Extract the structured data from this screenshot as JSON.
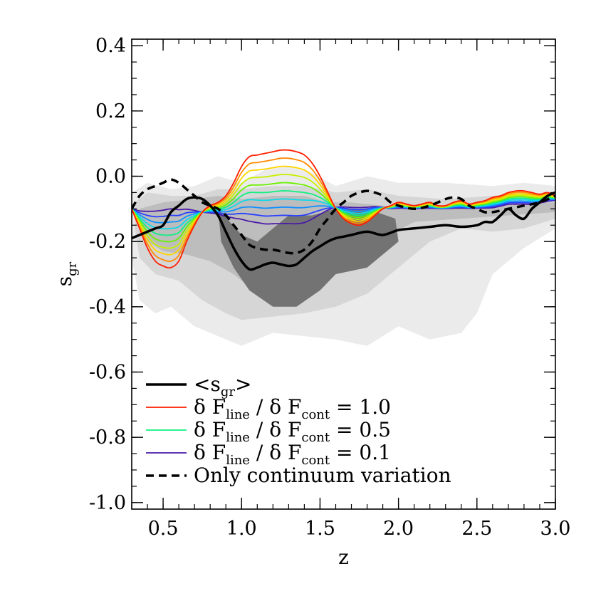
{
  "chart_data": {
    "type": "line",
    "xlabel": "z",
    "ylabel_main": "s",
    "ylabel_sub": "gr",
    "xlim": [
      0.3,
      3.0
    ],
    "ylim": [
      -1.02,
      0.42
    ],
    "xticks": [
      0.5,
      1.0,
      1.5,
      2.0,
      2.5,
      3.0
    ],
    "xtick_labels": [
      "0.5",
      "1.0",
      "1.5",
      "2.0",
      "2.5",
      "3.0"
    ],
    "yticks": [
      0.4,
      0.2,
      0.0,
      -0.2,
      -0.4,
      -0.6,
      -0.8,
      -1.0
    ],
    "ytick_labels": [
      "0.4",
      "0.2",
      "0.0",
      "-0.2",
      "-0.4",
      "-0.6",
      "-0.8",
      "-1.0"
    ],
    "x_minor_step": 0.1,
    "y_minor_step": 0.05,
    "density_contours": [
      {
        "level": "outer",
        "color": "#ebebeb",
        "points": [
          [
            0.3,
            -0.05
          ],
          [
            0.4,
            -0.02
          ],
          [
            0.55,
            -0.04
          ],
          [
            0.7,
            -0.03
          ],
          [
            0.85,
            0.0
          ],
          [
            1.0,
            -0.02
          ],
          [
            1.15,
            0.02
          ],
          [
            1.3,
            0.03
          ],
          [
            1.45,
            0.01
          ],
          [
            1.6,
            -0.03
          ],
          [
            1.8,
            0.0
          ],
          [
            2.0,
            -0.02
          ],
          [
            2.3,
            -0.02
          ],
          [
            2.6,
            -0.03
          ],
          [
            2.8,
            -0.02
          ],
          [
            3.0,
            -0.03
          ],
          [
            3.0,
            -0.16
          ],
          [
            2.8,
            -0.22
          ],
          [
            2.6,
            -0.3
          ],
          [
            2.5,
            -0.42
          ],
          [
            2.4,
            -0.48
          ],
          [
            2.2,
            -0.5
          ],
          [
            2.0,
            -0.46
          ],
          [
            1.8,
            -0.52
          ],
          [
            1.6,
            -0.5
          ],
          [
            1.4,
            -0.49
          ],
          [
            1.2,
            -0.48
          ],
          [
            1.0,
            -0.52
          ],
          [
            0.85,
            -0.49
          ],
          [
            0.7,
            -0.46
          ],
          [
            0.55,
            -0.4
          ],
          [
            0.45,
            -0.42
          ],
          [
            0.35,
            -0.38
          ],
          [
            0.3,
            -0.25
          ]
        ]
      },
      {
        "level": "middle",
        "color": "#d6d6d6",
        "points": [
          [
            0.32,
            -0.08
          ],
          [
            0.4,
            -0.05
          ],
          [
            0.55,
            -0.06
          ],
          [
            0.7,
            -0.06
          ],
          [
            0.85,
            -0.04
          ],
          [
            1.0,
            -0.04
          ],
          [
            1.2,
            -0.03
          ],
          [
            1.4,
            -0.03
          ],
          [
            1.6,
            -0.05
          ],
          [
            1.8,
            -0.04
          ],
          [
            2.0,
            -0.06
          ],
          [
            2.3,
            -0.07
          ],
          [
            2.6,
            -0.06
          ],
          [
            2.8,
            -0.05
          ],
          [
            3.0,
            -0.06
          ],
          [
            3.0,
            -0.13
          ],
          [
            2.8,
            -0.16
          ],
          [
            2.6,
            -0.17
          ],
          [
            2.4,
            -0.16
          ],
          [
            2.2,
            -0.2
          ],
          [
            2.0,
            -0.28
          ],
          [
            1.8,
            -0.36
          ],
          [
            1.6,
            -0.4
          ],
          [
            1.4,
            -0.42
          ],
          [
            1.2,
            -0.43
          ],
          [
            1.0,
            -0.44
          ],
          [
            0.9,
            -0.42
          ],
          [
            0.75,
            -0.38
          ],
          [
            0.6,
            -0.32
          ],
          [
            0.45,
            -0.3
          ],
          [
            0.35,
            -0.25
          ],
          [
            0.32,
            -0.16
          ]
        ]
      },
      {
        "level": "inner",
        "color": "#bdbdbd",
        "points": [
          [
            0.35,
            -0.1
          ],
          [
            0.5,
            -0.08
          ],
          [
            0.7,
            -0.07
          ],
          [
            0.85,
            -0.06
          ],
          [
            1.0,
            -0.07
          ],
          [
            1.2,
            -0.06
          ],
          [
            1.4,
            -0.06
          ],
          [
            1.55,
            -0.08
          ],
          [
            1.7,
            -0.08
          ],
          [
            1.9,
            -0.09
          ],
          [
            2.1,
            -0.1
          ],
          [
            2.4,
            -0.09
          ],
          [
            2.7,
            -0.08
          ],
          [
            3.0,
            -0.08
          ],
          [
            3.0,
            -0.11
          ],
          [
            2.7,
            -0.12
          ],
          [
            2.4,
            -0.13
          ],
          [
            2.1,
            -0.14
          ],
          [
            1.9,
            -0.19
          ],
          [
            1.7,
            -0.25
          ],
          [
            1.55,
            -0.32
          ],
          [
            1.4,
            -0.36
          ],
          [
            1.2,
            -0.37
          ],
          [
            1.05,
            -0.34
          ],
          [
            0.95,
            -0.3
          ],
          [
            0.8,
            -0.26
          ],
          [
            0.65,
            -0.24
          ],
          [
            0.5,
            -0.23
          ],
          [
            0.4,
            -0.2
          ],
          [
            0.35,
            -0.15
          ]
        ]
      },
      {
        "level": "core",
        "color": "#737373",
        "points": [
          [
            0.85,
            -0.1
          ],
          [
            1.0,
            -0.18
          ],
          [
            1.1,
            -0.2
          ],
          [
            1.3,
            -0.12
          ],
          [
            1.45,
            -0.12
          ],
          [
            1.6,
            -0.1
          ],
          [
            1.8,
            -0.1
          ],
          [
            1.98,
            -0.13
          ],
          [
            2.0,
            -0.2
          ],
          [
            1.8,
            -0.28
          ],
          [
            1.6,
            -0.3
          ],
          [
            1.5,
            -0.35
          ],
          [
            1.35,
            -0.4
          ],
          [
            1.2,
            -0.4
          ],
          [
            1.05,
            -0.35
          ],
          [
            0.95,
            -0.28
          ],
          [
            0.87,
            -0.2
          ]
        ]
      }
    ],
    "series": [
      {
        "name": "<s_gr>",
        "kind": "mean",
        "color": "#000000",
        "width": 3.5,
        "dash": "",
        "x": [
          0.3,
          0.35,
          0.4,
          0.45,
          0.5,
          0.55,
          0.6,
          0.65,
          0.7,
          0.75,
          0.8,
          0.85,
          0.9,
          0.95,
          1.0,
          1.05,
          1.1,
          1.15,
          1.2,
          1.25,
          1.3,
          1.35,
          1.4,
          1.45,
          1.5,
          1.55,
          1.6,
          1.65,
          1.7,
          1.8,
          1.9,
          2.0,
          2.1,
          2.2,
          2.3,
          2.4,
          2.5,
          2.55,
          2.6,
          2.65,
          2.7,
          2.75,
          2.8,
          2.85,
          2.9,
          2.95,
          3.0
        ],
        "y": [
          -0.19,
          -0.18,
          -0.17,
          -0.16,
          -0.15,
          -0.11,
          -0.09,
          -0.07,
          -0.065,
          -0.07,
          -0.09,
          -0.12,
          -0.17,
          -0.22,
          -0.26,
          -0.285,
          -0.28,
          -0.27,
          -0.265,
          -0.27,
          -0.275,
          -0.27,
          -0.25,
          -0.23,
          -0.215,
          -0.2,
          -0.19,
          -0.185,
          -0.18,
          -0.17,
          -0.18,
          -0.165,
          -0.16,
          -0.155,
          -0.15,
          -0.155,
          -0.15,
          -0.14,
          -0.14,
          -0.12,
          -0.1,
          -0.12,
          -0.13,
          -0.1,
          -0.08,
          -0.06,
          -0.05
        ]
      },
      {
        "name": "Only continuum variation",
        "kind": "dashed",
        "color": "#000000",
        "width": 3.5,
        "dash": "11 7",
        "x": [
          0.3,
          0.35,
          0.4,
          0.45,
          0.5,
          0.55,
          0.6,
          0.65,
          0.7,
          0.75,
          0.8,
          0.85,
          0.9,
          0.95,
          1.0,
          1.05,
          1.1,
          1.15,
          1.2,
          1.25,
          1.3,
          1.35,
          1.4,
          1.45,
          1.5,
          1.55,
          1.6,
          1.65,
          1.7,
          1.75,
          1.8,
          1.85,
          1.9,
          1.95,
          2.0,
          2.1,
          2.2,
          2.3,
          2.35,
          2.4,
          2.45,
          2.5,
          2.55,
          2.6,
          2.7,
          2.8,
          2.9,
          3.0
        ],
        "y": [
          -0.1,
          -0.06,
          -0.04,
          -0.03,
          -0.02,
          -0.01,
          -0.02,
          -0.04,
          -0.06,
          -0.08,
          -0.09,
          -0.1,
          -0.12,
          -0.15,
          -0.18,
          -0.21,
          -0.22,
          -0.225,
          -0.225,
          -0.23,
          -0.235,
          -0.235,
          -0.225,
          -0.2,
          -0.16,
          -0.13,
          -0.1,
          -0.08,
          -0.06,
          -0.05,
          -0.045,
          -0.05,
          -0.06,
          -0.08,
          -0.09,
          -0.1,
          -0.09,
          -0.07,
          -0.065,
          -0.07,
          -0.09,
          -0.1,
          -0.11,
          -0.11,
          -0.1,
          -0.09,
          -0.08,
          -0.06
        ]
      }
    ],
    "line_fraction_family": {
      "ratios": [
        1.0,
        0.9,
        0.8,
        0.7,
        0.6,
        0.5,
        0.4,
        0.3,
        0.2,
        0.1
      ],
      "colors": [
        "#ff1e00",
        "#ff8a00",
        "#ffd400",
        "#c8f000",
        "#6cf000",
        "#10f080",
        "#10d8e8",
        "#1090ff",
        "#2840ff",
        "#4a1aa8"
      ],
      "x": [
        0.3,
        0.35,
        0.4,
        0.45,
        0.5,
        0.55,
        0.6,
        0.65,
        0.7,
        0.75,
        0.8,
        0.85,
        0.9,
        0.95,
        1.0,
        1.05,
        1.1,
        1.15,
        1.2,
        1.25,
        1.3,
        1.35,
        1.4,
        1.45,
        1.5,
        1.55,
        1.6,
        1.65,
        1.7,
        1.75,
        1.8,
        1.85,
        1.9,
        1.95,
        2.0,
        2.05,
        2.1,
        2.15,
        2.2,
        2.25,
        2.3,
        2.35,
        2.4,
        2.45,
        2.5,
        2.55,
        2.6,
        2.65,
        2.7,
        2.75,
        2.8,
        2.85,
        2.9,
        2.95,
        3.0
      ],
      "ratio_1": [
        -0.1,
        -0.16,
        -0.22,
        -0.26,
        -0.275,
        -0.28,
        -0.26,
        -0.2,
        -0.15,
        -0.11,
        -0.09,
        -0.08,
        -0.06,
        -0.02,
        0.03,
        0.06,
        0.065,
        0.07,
        0.075,
        0.08,
        0.08,
        0.075,
        0.065,
        0.04,
        0.0,
        -0.05,
        -0.1,
        -0.13,
        -0.145,
        -0.15,
        -0.14,
        -0.12,
        -0.1,
        -0.09,
        -0.08,
        -0.085,
        -0.09,
        -0.085,
        -0.08,
        -0.09,
        -0.09,
        -0.08,
        -0.075,
        -0.085,
        -0.08,
        -0.075,
        -0.065,
        -0.06,
        -0.05,
        -0.045,
        -0.045,
        -0.05,
        -0.055,
        -0.05,
        -0.06
      ],
      "ratio_0": [
        -0.1,
        -0.1,
        -0.095,
        -0.09,
        -0.085,
        -0.08,
        -0.085,
        -0.09,
        -0.1,
        -0.11,
        -0.115,
        -0.12,
        -0.13,
        -0.14,
        -0.15,
        -0.16,
        -0.165,
        -0.17,
        -0.17,
        -0.17,
        -0.17,
        -0.17,
        -0.165,
        -0.15,
        -0.13,
        -0.11,
        -0.095,
        -0.09,
        -0.09,
        -0.09,
        -0.09,
        -0.09,
        -0.095,
        -0.1,
        -0.1,
        -0.1,
        -0.1,
        -0.1,
        -0.1,
        -0.1,
        -0.1,
        -0.1,
        -0.1,
        -0.1,
        -0.1,
        -0.1,
        -0.1,
        -0.095,
        -0.09,
        -0.09,
        -0.09,
        -0.09,
        -0.085,
        -0.08,
        -0.075
      ]
    },
    "legend": {
      "placement": "bottom-left",
      "entries": [
        {
          "main": "<s",
          "sub": "gr",
          "after": ">",
          "color": "#000000",
          "style": "solid-thick"
        },
        {
          "prefix": "δ F",
          "sub1": "line",
          "middle": " / δ F",
          "sub2": "cont",
          "suffix": " = 1.0",
          "color": "#ff1e00",
          "style": "solid"
        },
        {
          "prefix": "δ F",
          "sub1": "line",
          "middle": " / δ F",
          "sub2": "cont",
          "suffix": " = 0.5",
          "color": "#10f080",
          "style": "solid"
        },
        {
          "prefix": "δ F",
          "sub1": "line",
          "middle": " / δ F",
          "sub2": "cont",
          "suffix": " = 0.1",
          "color": "#4a1aa8",
          "style": "solid"
        },
        {
          "main": "Only continuum variation",
          "color": "#000000",
          "style": "dashed"
        }
      ]
    }
  }
}
